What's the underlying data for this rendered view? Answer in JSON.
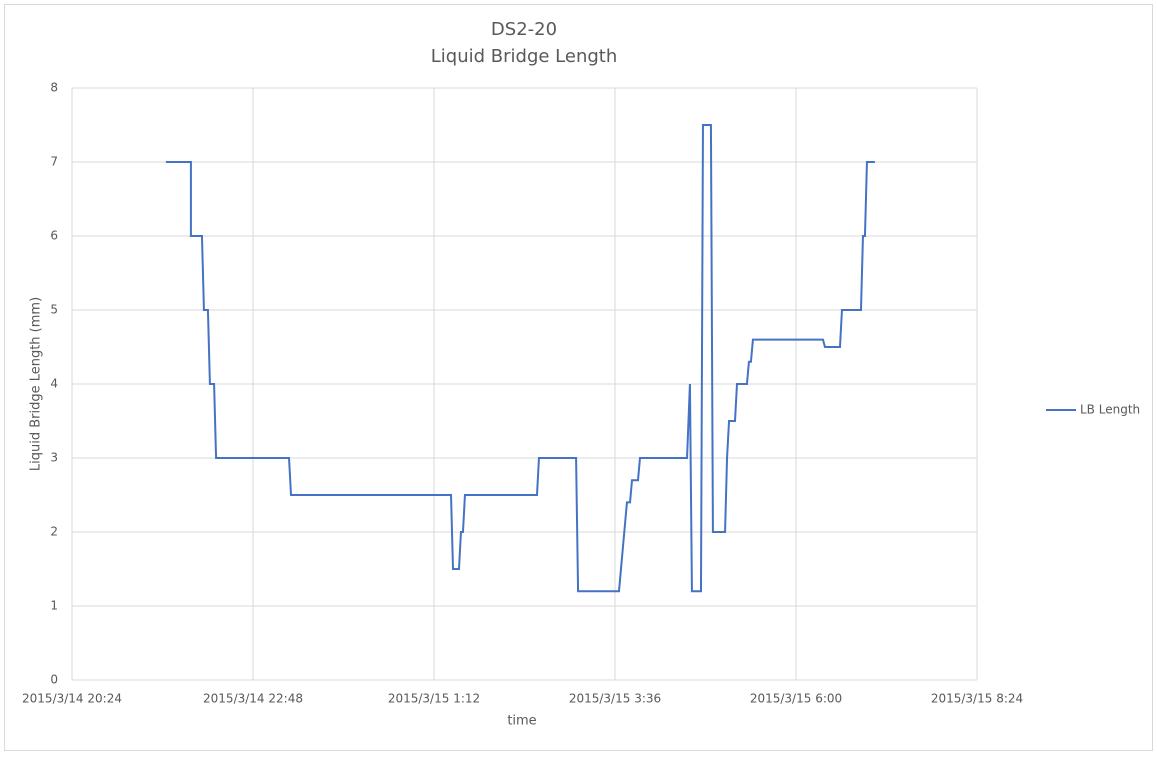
{
  "chart_data": {
    "type": "line",
    "title": "DS2-20",
    "subtitle": "Liquid Bridge Length",
    "x_label": "time",
    "y_label": "Liquid Bridge Length (mm)",
    "grid": true,
    "legend": "right",
    "xlim": [
      42077.85,
      42078.35
    ],
    "xticks": [
      {
        "value": 42077.85,
        "label": "2015/3/14 20:24"
      },
      {
        "value": 42077.95,
        "label": "2015/3/14 22:48"
      },
      {
        "value": 42078.05,
        "label": "2015/3/15 1:12"
      },
      {
        "value": 42078.15,
        "label": "2015/3/15 3:36"
      },
      {
        "value": 42078.25,
        "label": "2015/3/15 6:00"
      },
      {
        "value": 42078.35,
        "label": "2015/3/15 8:24"
      }
    ],
    "ylim": [
      0,
      8
    ],
    "yticks": [
      0,
      1,
      2,
      3,
      4,
      5,
      6,
      7,
      8
    ],
    "x": [
      42077.9019,
      42077.9157,
      42077.9157,
      42077.9218,
      42077.9229,
      42077.9251,
      42077.9262,
      42077.9285,
      42077.9296,
      42077.9699,
      42077.971,
      42078.0594,
      42078.0605,
      42078.0638,
      42078.0649,
      42078.066,
      42078.0671,
      42078.1069,
      42078.108,
      42078.1285,
      42078.1296,
      42078.1522,
      42078.1533,
      42078.1544,
      42078.1555,
      42078.1566,
      42078.1583,
      42078.1594,
      42078.1627,
      42078.1638,
      42078.1898,
      42078.1914,
      42078.1925,
      42078.1975,
      42078.1986,
      42078.203,
      42078.2041,
      42078.2108,
      42078.2119,
      42078.213,
      42078.2163,
      42078.2174,
      42078.2229,
      42078.224,
      42078.2251,
      42078.2262,
      42078.2649,
      42078.266,
      42078.2743,
      42078.2754,
      42078.2859,
      42078.287,
      42078.2881,
      42078.2892,
      42078.2936
    ],
    "series": [
      {
        "name": "LB Length",
        "color": "#4472c4",
        "values": [
          7,
          7,
          6,
          6,
          5,
          5,
          4,
          4,
          3,
          3,
          2.5,
          2.5,
          1.5,
          1.5,
          2,
          2,
          2.5,
          2.5,
          3,
          3,
          1.2,
          1.2,
          1.5,
          1.8,
          2.1,
          2.4,
          2.4,
          2.7,
          2.7,
          3,
          3,
          4,
          1.2,
          1.2,
          7.5,
          7.5,
          2,
          2,
          3,
          3.5,
          3.5,
          4,
          4,
          4.3,
          4.3,
          4.6,
          4.6,
          4.5,
          4.5,
          5,
          5,
          6,
          6,
          7,
          7
        ]
      }
    ]
  }
}
